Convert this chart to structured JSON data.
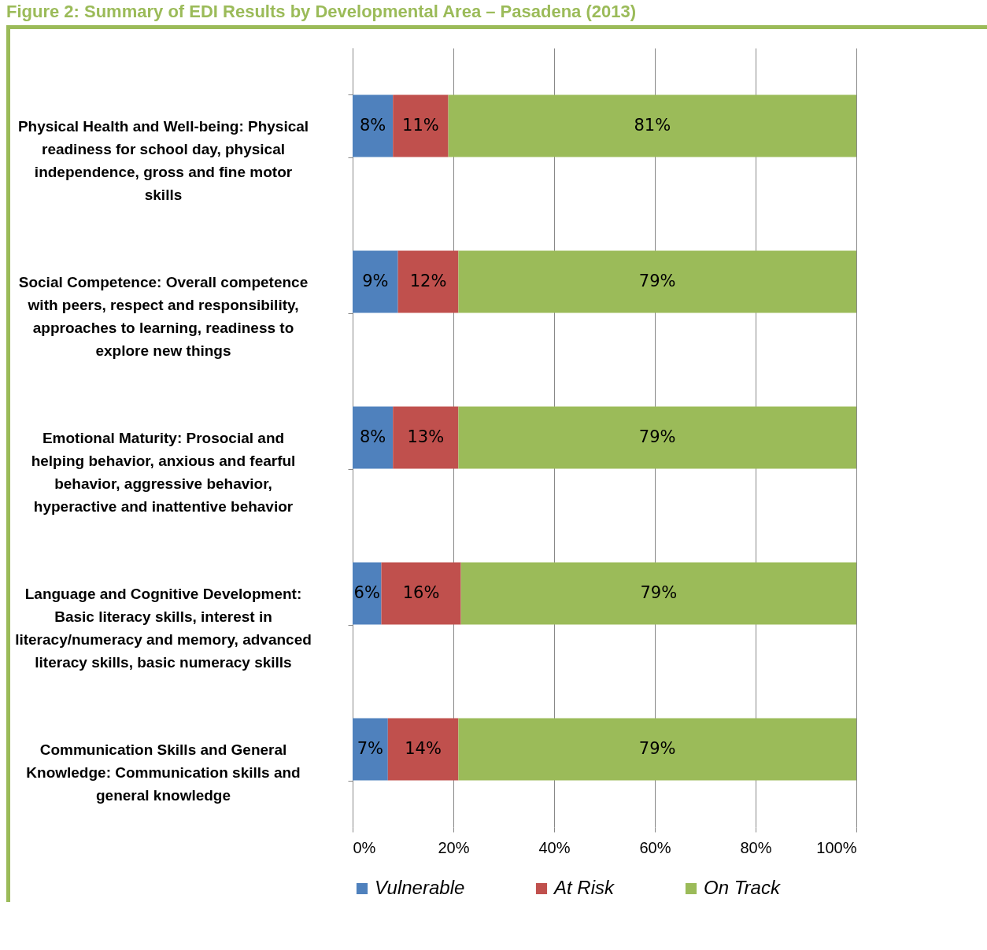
{
  "chart_data": {
    "type": "bar",
    "orientation": "horizontal",
    "stacked": true,
    "title": "Figure 2: Summary of EDI Results by Developmental Area – Pasadena (2013)",
    "categories": [
      "Physical Health and Well-being: Physical readiness for school day, physical independence, gross and fine motor skills",
      "Social Competence: Overall competence with peers, respect and responsibility, approaches to learning, readiness to explore new things",
      "Emotional Maturity: Prosocial and helping behavior, anxious and fearful behavior, aggressive behavior, hyperactive and inattentive behavior",
      "Language and Cognitive Development: Basic literacy skills, interest in literacy/numeracy and memory, advanced literacy skills, basic numeracy skills",
      "Communication Skills and General Knowledge: Communication skills and general knowledge"
    ],
    "series": [
      {
        "name": "Vulnerable",
        "color": "#4f81bd",
        "values": [
          8,
          9,
          8,
          5.7,
          7
        ],
        "value_labels": [
          "8%",
          "9%",
          "8%",
          "6%",
          "7%"
        ]
      },
      {
        "name": "At Risk",
        "color": "#c0504d",
        "values": [
          11,
          12,
          13,
          15.8,
          14
        ],
        "value_labels": [
          "11%",
          "12%",
          "13%",
          "16%",
          "14%"
        ]
      },
      {
        "name": "On Track",
        "color": "#9bbb59",
        "values": [
          81,
          79,
          79,
          78.5,
          79
        ],
        "value_labels": [
          "81%",
          "79%",
          "79%",
          "79%",
          "79%"
        ]
      }
    ],
    "xlim": [
      0,
      100
    ],
    "xticks": [
      {
        "value": 0,
        "label": "0%"
      },
      {
        "value": 20,
        "label": "20%"
      },
      {
        "value": 40,
        "label": "40%"
      },
      {
        "value": 60,
        "label": "60%"
      },
      {
        "value": 80,
        "label": "80%"
      },
      {
        "value": 100,
        "label": "100%"
      }
    ],
    "grid": "x",
    "legend": "bottom"
  }
}
